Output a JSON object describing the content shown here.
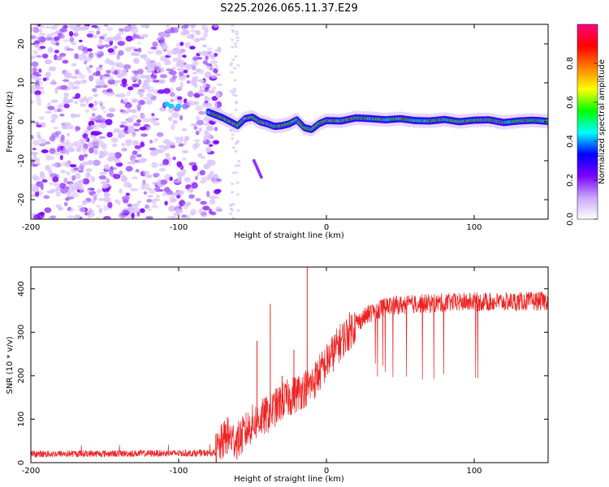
{
  "title": "S225.2026.065.11.37.E29",
  "chart_data": [
    {
      "type": "heatmap",
      "xlabel": "Height of straight line (km)",
      "ylabel": "Frequency (Hz)",
      "xlim": [
        -200,
        150
      ],
      "ylim": [
        -25,
        25
      ],
      "xticks": [
        -200,
        -100,
        0,
        100
      ],
      "yticks": [
        -20,
        -10,
        0,
        10,
        20
      ],
      "colorbar": {
        "label": "Normalized spectral amplitude",
        "range": [
          0,
          1
        ],
        "ticks": [
          "0.0",
          "0.2",
          "0.4",
          "0.6",
          "0.8"
        ],
        "colors": [
          "#ffffff",
          "#c9a6ff",
          "#7a00ff",
          "#0000ff",
          "#00ffff",
          "#00ff00",
          "#ffff00",
          "#ff8000",
          "#ff0000",
          "#ff0080"
        ]
      },
      "noise_region_x": [
        -200,
        -72
      ],
      "ridge": {
        "x": [
          -80,
          -70,
          -60,
          -55,
          -50,
          -45,
          -40,
          -35,
          -30,
          -25,
          -20,
          -15,
          -10,
          -5,
          0,
          10,
          20,
          30,
          40,
          50,
          60,
          70,
          80,
          90,
          100,
          110,
          120,
          130,
          140,
          150
        ],
        "y": [
          2.5,
          1.0,
          -1.0,
          0.8,
          1.2,
          0.0,
          -0.5,
          -1.2,
          -1.0,
          -0.5,
          0.5,
          -1.5,
          -2.0,
          -0.5,
          0.3,
          0.2,
          1.0,
          0.8,
          0.5,
          0.8,
          0.3,
          0.2,
          0.6,
          0.0,
          0.4,
          0.5,
          -0.2,
          0.2,
          0.4,
          0.1
        ]
      }
    },
    {
      "type": "line",
      "xlabel": "Height of straight line (km)",
      "ylabel": "SNR (10 * v/v)",
      "xlim": [
        -200,
        150
      ],
      "ylim": [
        0,
        450
      ],
      "xticks": [
        -200,
        -100,
        0,
        100
      ],
      "yticks": [
        0,
        100,
        200,
        300,
        400
      ],
      "color": "#ee2222",
      "trend": {
        "x": [
          -200,
          -75,
          -68,
          -60,
          -50,
          -40,
          -30,
          -20,
          -10,
          0,
          10,
          20,
          30,
          40,
          60,
          80,
          100,
          120,
          150
        ],
        "y": [
          20,
          22,
          60,
          50,
          90,
          110,
          140,
          160,
          180,
          230,
          280,
          320,
          345,
          360,
          365,
          368,
          370,
          370,
          372
        ]
      },
      "spikes": [
        {
          "x": -67,
          "y": 105
        },
        {
          "x": -47,
          "y": 280
        },
        {
          "x": -38,
          "y": 365
        },
        {
          "x": -13,
          "y": 450
        },
        {
          "x": -22,
          "y": 260
        },
        {
          "x": -30,
          "y": 200
        }
      ],
      "dropout_region_x": [
        30,
        108
      ],
      "dropout_min": 190
    }
  ]
}
